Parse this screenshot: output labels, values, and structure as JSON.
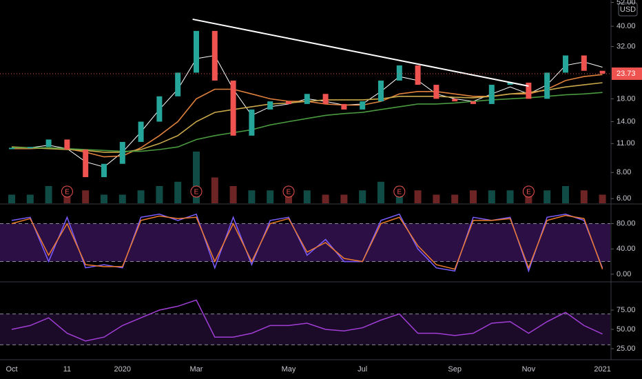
{
  "chart_data": [
    {
      "type": "candlestick",
      "currency": "USD",
      "log_scale": true,
      "ylim": [
        5.7,
        53.4
      ],
      "yticks": [
        {
          "value": 52,
          "label": "52.00"
        },
        {
          "value": 40,
          "label": "40.00"
        },
        {
          "value": 32,
          "label": "32.00"
        },
        {
          "value": 18,
          "label": "18.00"
        },
        {
          "value": 14,
          "label": "14.00"
        },
        {
          "value": 11,
          "label": "11.00"
        },
        {
          "value": 8,
          "label": "8.00"
        },
        {
          "value": 6,
          "label": "6.00"
        }
      ],
      "last_price": 23.73,
      "last_price_color": "#ef5350",
      "up_color": "#26a69a",
      "down_color": "#ef5350",
      "close": [
        10.5,
        10.6,
        11.5,
        10.3,
        7.6,
        8.8,
        11.2,
        14.0,
        18.5,
        24,
        38,
        22,
        12,
        16,
        17.5,
        17,
        19,
        17,
        16,
        17.5,
        22,
        26,
        21,
        18,
        17.5,
        17,
        21,
        21.5,
        18,
        24,
        29,
        24.5,
        23.73
      ],
      "series": [
        {
          "color": "#ffffff",
          "values": [
            10.5,
            10.5,
            10.8,
            10.4,
            9.0,
            8.5,
            10,
            12.5,
            16,
            20,
            28,
            29,
            20,
            15,
            16.5,
            17,
            18,
            17.5,
            16.8,
            17,
            19.5,
            23,
            22,
            19,
            18,
            17.5,
            19,
            20.5,
            19,
            21,
            26,
            27,
            25.5
          ]
        },
        {
          "color": "#e0823d",
          "values": [
            10.4,
            10.4,
            10.5,
            10.4,
            10,
            9.5,
            9.6,
            10.5,
            12,
            14,
            18,
            20,
            20,
            19,
            18,
            17.5,
            17.5,
            17,
            16.8,
            16.8,
            17.5,
            19,
            19.5,
            19.5,
            19,
            18.5,
            18.5,
            19,
            19,
            20,
            22,
            23,
            23.5
          ]
        },
        {
          "color": "#c9a94a",
          "values": [
            10.6,
            10.5,
            10.4,
            10.3,
            10.2,
            10,
            10,
            10.3,
            11,
            12,
            14,
            15.5,
            16,
            16.5,
            17,
            17.2,
            17.5,
            17.8,
            17.8,
            17.8,
            18,
            18.5,
            18.5,
            18.5,
            18.3,
            18.2,
            18.5,
            19,
            19.3,
            19.8,
            20.5,
            21,
            21.5
          ]
        },
        {
          "color": "#4a9a3f",
          "values": [
            10.5,
            10.5,
            10.5,
            10.4,
            10.3,
            10.2,
            10.1,
            10.1,
            10.3,
            10.6,
            11.5,
            12,
            12.4,
            12.8,
            13.5,
            14,
            14.5,
            15,
            15.3,
            15.5,
            16,
            16.5,
            17,
            17,
            17.2,
            17.5,
            17.8,
            18,
            18.2,
            18.5,
            18.8,
            19,
            19.3
          ]
        }
      ],
      "volume": [
        2,
        2,
        4,
        2,
        3,
        2,
        2,
        3,
        4,
        5,
        12,
        6,
        4,
        3,
        3,
        2,
        3,
        2,
        2,
        3,
        5,
        4,
        3,
        2,
        2,
        3,
        3,
        3,
        2,
        3,
        4,
        3,
        2
      ],
      "trendline": {
        "color": "#ffffff",
        "from": [
          9.8,
          43.2
        ],
        "to": [
          28,
          20.7
        ]
      },
      "earnings": {
        "label": "E",
        "color": "#ef5350",
        "positions": [
          3,
          10,
          15,
          21,
          28
        ]
      }
    },
    {
      "type": "line",
      "ylim": [
        -11,
        110
      ],
      "yticks": [
        {
          "value": 80,
          "label": "80.00"
        },
        {
          "value": 40,
          "label": "40.00"
        },
        {
          "value": 0,
          "label": "0.00"
        }
      ],
      "bands": [
        20,
        80
      ],
      "band_color": "#2b0f45",
      "series": [
        {
          "color": "#7b5cff",
          "values": [
            85,
            90,
            20,
            90,
            10,
            15,
            10,
            90,
            95,
            85,
            95,
            10,
            90,
            15,
            85,
            90,
            30,
            55,
            20,
            20,
            85,
            95,
            40,
            10,
            5,
            90,
            85,
            90,
            5,
            90,
            95,
            85,
            10
          ]
        },
        {
          "color": "#f07c2e",
          "values": [
            80,
            88,
            30,
            80,
            15,
            12,
            12,
            85,
            92,
            88,
            90,
            20,
            80,
            20,
            80,
            88,
            35,
            50,
            25,
            20,
            80,
            90,
            45,
            15,
            8,
            85,
            85,
            88,
            10,
            85,
            93,
            88,
            8
          ]
        }
      ]
    },
    {
      "type": "line",
      "ylim": [
        10.7,
        110.7
      ],
      "yticks": [
        {
          "value": 75,
          "label": "75.00"
        },
        {
          "value": 50,
          "label": "50.00"
        },
        {
          "value": 25,
          "label": "25.00"
        }
      ],
      "bands": [
        30,
        70
      ],
      "band_color": "#1c0b28",
      "categories": [
        "Oct",
        null,
        null,
        "11",
        null,
        null,
        "2020",
        null,
        null,
        null,
        "Mar",
        null,
        null,
        null,
        null,
        "May",
        null,
        null,
        null,
        "Jul",
        null,
        null,
        null,
        null,
        "Sep",
        null,
        null,
        null,
        "Nov",
        null,
        null,
        null,
        "2021"
      ],
      "series": [
        {
          "color": "#a13ed6",
          "values": [
            50,
            55,
            65,
            45,
            35,
            40,
            55,
            65,
            75,
            80,
            88,
            40,
            40,
            45,
            55,
            55,
            58,
            50,
            48,
            52,
            62,
            70,
            45,
            45,
            42,
            45,
            58,
            60,
            45,
            60,
            72,
            55,
            44
          ]
        }
      ]
    }
  ]
}
